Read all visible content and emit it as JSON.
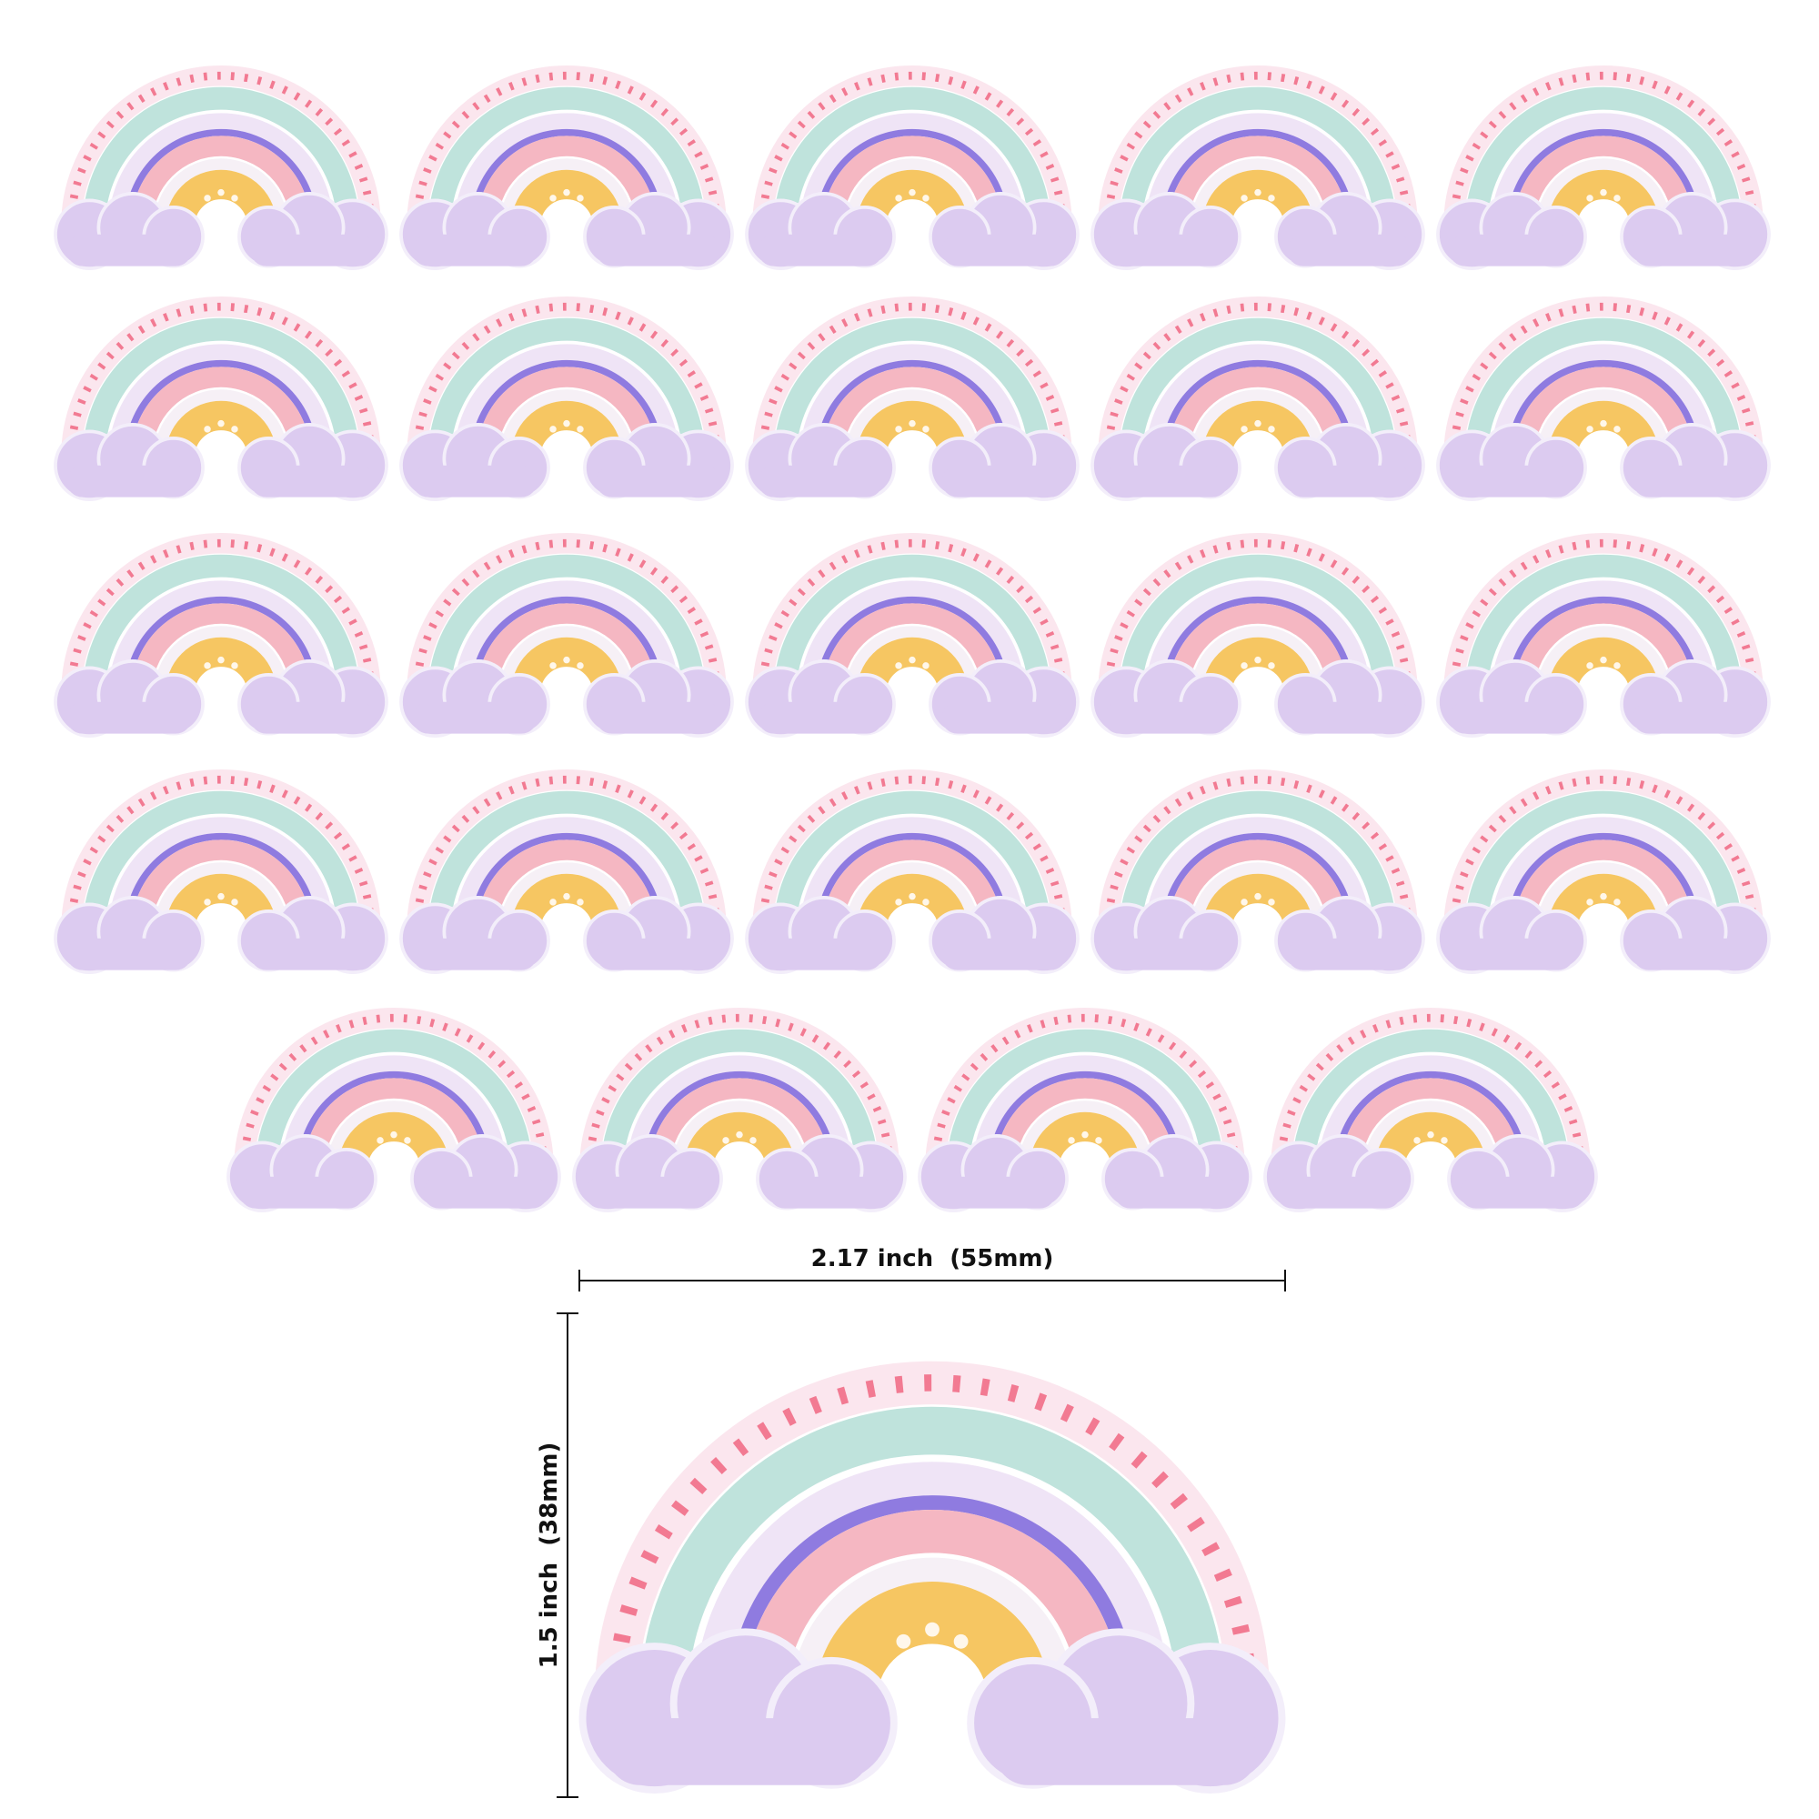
{
  "dimensions": {
    "width_label": "2.17 inch  (55mm)",
    "height_label": "1.5 inch  (38mm)"
  }
}
